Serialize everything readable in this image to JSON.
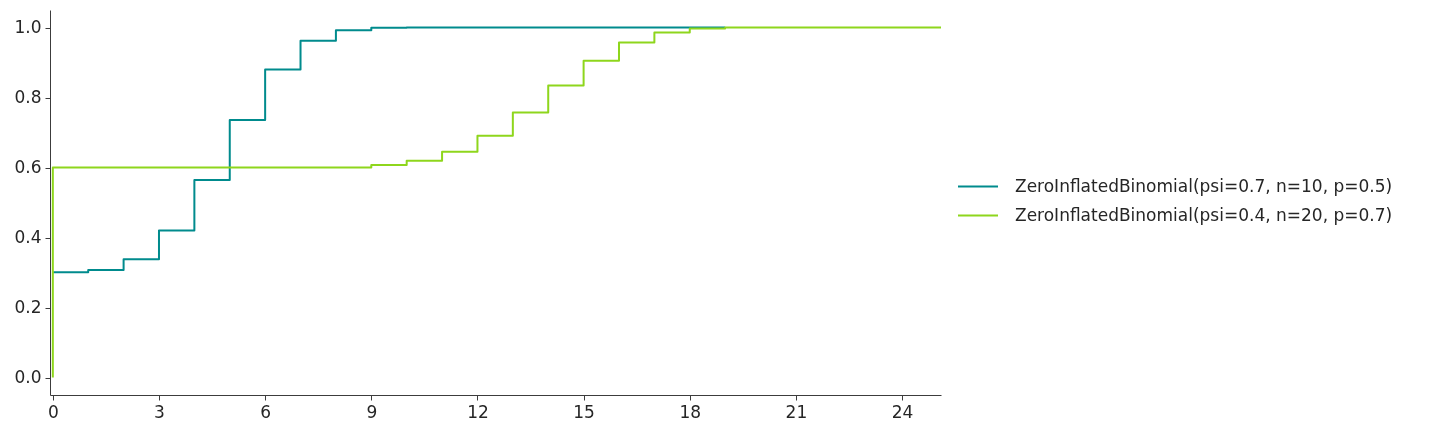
{
  "chart_data": {
    "type": "step",
    "xlim": [
      -0.08,
      25.1
    ],
    "xticks": [
      0,
      3,
      6,
      9,
      12,
      15,
      18,
      21,
      24
    ],
    "ylim": [
      -0.05,
      1.05
    ],
    "yticks": [
      {
        "value": 0,
        "label": "0.0"
      },
      {
        "value": 0.2,
        "label": "0.2"
      },
      {
        "value": 0.4,
        "label": "0.4"
      },
      {
        "value": 0.6,
        "label": "0.6"
      },
      {
        "value": 0.8,
        "label": "0.8"
      },
      {
        "value": 1,
        "label": "1.0"
      }
    ],
    "legend": "right",
    "series": [
      {
        "name": "ZeroInflatedBinomial(psi=0.7, n=10, p=0.5)",
        "color": "#008b8d",
        "x": [
          0,
          1,
          2,
          3,
          4,
          5,
          6,
          7,
          8,
          9,
          10,
          11,
          12,
          13,
          14,
          15,
          16,
          17,
          18,
          19
        ],
        "values": [
          0.301,
          0.307,
          0.338,
          0.42,
          0.564,
          0.736,
          0.88,
          0.962,
          0.992,
          0.999,
          1,
          1,
          1,
          1,
          1,
          1,
          1,
          1,
          1,
          1
        ]
      },
      {
        "name": "ZeroInflatedBinomial(psi=0.4, n=20, p=0.7)",
        "color": "#8ed61c",
        "x": [
          0,
          0,
          1,
          2,
          3,
          4,
          5,
          6,
          7,
          8,
          9,
          10,
          11,
          12,
          13,
          14,
          15,
          16,
          17,
          18,
          19,
          25.1
        ],
        "values": [
          0,
          0.6,
          0.6,
          0.6,
          0.6,
          0.6,
          0.6,
          0.6,
          0.6,
          0.6,
          0.607,
          0.619,
          0.645,
          0.691,
          0.757,
          0.834,
          0.905,
          0.957,
          0.986,
          0.997,
          1,
          1
        ]
      }
    ]
  }
}
